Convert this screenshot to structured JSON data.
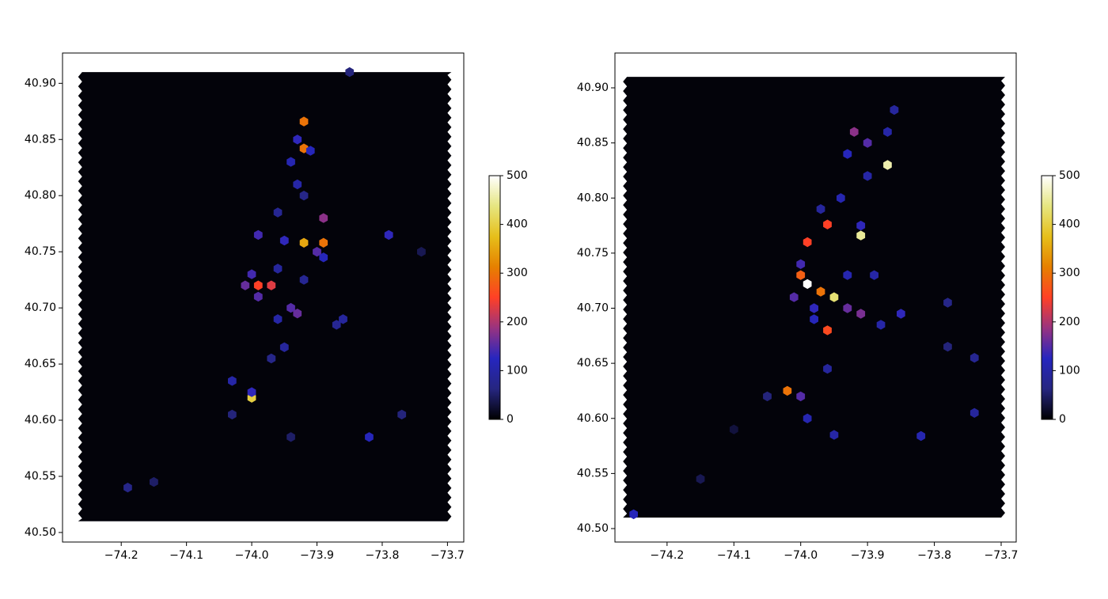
{
  "chart_data": [
    {
      "type": "hexbin",
      "x": [
        -73.92,
        -73.92,
        -73.92,
        -73.89,
        -73.99,
        -74.0,
        -73.97,
        -73.89,
        -73.93,
        -73.91,
        -73.94,
        -73.93,
        -73.95,
        -73.99,
        -74.0,
        -74.01,
        -73.99,
        -73.94,
        -73.93,
        -73.9,
        -73.79,
        -73.82,
        -74.03,
        -74.0,
        -73.95,
        -73.85,
        -74.19,
        -74.15,
        -73.77,
        -73.74,
        -73.87,
        -73.86,
        -73.96,
        -73.92,
        -73.96,
        -74.03,
        -73.94,
        -73.97,
        -73.96,
        -73.92,
        -73.89
      ],
      "y": [
        40.866,
        40.842,
        40.758,
        40.758,
        40.72,
        40.62,
        40.72,
        40.78,
        40.85,
        40.84,
        40.83,
        40.81,
        40.76,
        40.765,
        40.73,
        40.72,
        40.71,
        40.7,
        40.695,
        40.75,
        40.765,
        40.585,
        40.635,
        40.625,
        40.665,
        40.91,
        40.54,
        40.545,
        40.605,
        40.75,
        40.685,
        40.69,
        40.735,
        40.8,
        40.785,
        40.605,
        40.585,
        40.655,
        40.69,
        40.725,
        40.745
      ],
      "values": [
        300,
        300,
        350,
        300,
        250,
        400,
        230,
        180,
        130,
        120,
        110,
        100,
        130,
        140,
        140,
        160,
        150,
        150,
        160,
        150,
        130,
        120,
        100,
        130,
        90,
        60,
        70,
        50,
        60,
        40,
        80,
        90,
        90,
        70,
        80,
        60,
        50,
        70,
        100,
        80,
        120
      ],
      "xlim": [
        -74.29,
        -73.675
      ],
      "ylim": [
        40.4915,
        40.927
      ],
      "xticks": [
        {
          "value": -74.2,
          "label": "−74.2"
        },
        {
          "value": -74.1,
          "label": "−74.1"
        },
        {
          "value": -74.0,
          "label": "−74.0"
        },
        {
          "value": -73.9,
          "label": "−73.9"
        },
        {
          "value": -73.8,
          "label": "−73.8"
        },
        {
          "value": -73.7,
          "label": "−73.7"
        }
      ],
      "yticks": [
        {
          "value": 40.5,
          "label": "40.50"
        },
        40.55,
        {
          "value": 40.6,
          "label": "40.60"
        },
        40.65,
        {
          "value": 40.7,
          "label": "40.70"
        },
        40.75,
        {
          "value": 40.8,
          "label": "40.80"
        },
        40.85,
        {
          "value": 40.9,
          "label": "40.90"
        }
      ],
      "colorbar_lim": [
        0,
        500
      ],
      "colorbar_ticks": [
        0,
        100,
        200,
        300,
        400,
        500
      ],
      "colormap": [
        "#000000",
        "#262680",
        "#2626bf",
        "#993380",
        "#ff4026",
        "#e68000",
        "#e6bf1a",
        "#e6e680",
        "#ffffff"
      ]
    },
    {
      "type": "hexbin",
      "x": [
        -73.99,
        -73.87,
        -73.91,
        -73.95,
        -73.97,
        -74.0,
        -73.99,
        -73.96,
        -73.96,
        -74.02,
        -74.25,
        -73.82,
        -73.95,
        -73.74,
        -73.74,
        -73.92,
        -73.9,
        -73.87,
        -73.86,
        -73.93,
        -73.9,
        -73.94,
        -73.97,
        -73.91,
        -73.93,
        -73.89,
        -74.0,
        -74.01,
        -73.98,
        -73.93,
        -73.91,
        -73.85,
        -73.88,
        -73.98,
        -74.0,
        -73.99,
        -73.96,
        -74.05,
        -73.78,
        -74.1,
        -74.15,
        -73.78
      ],
      "y": [
        40.722,
        40.83,
        40.766,
        40.71,
        40.715,
        40.73,
        40.76,
        40.776,
        40.68,
        40.625,
        40.513,
        40.584,
        40.585,
        40.605,
        40.655,
        40.86,
        40.85,
        40.86,
        40.88,
        40.84,
        40.82,
        40.8,
        40.79,
        40.775,
        40.73,
        40.73,
        40.74,
        40.71,
        40.7,
        40.7,
        40.695,
        40.695,
        40.685,
        40.69,
        40.62,
        40.6,
        40.645,
        40.62,
        40.665,
        40.59,
        40.545,
        40.705
      ],
      "values": [
        500,
        460,
        450,
        430,
        300,
        280,
        250,
        250,
        260,
        300,
        120,
        110,
        100,
        90,
        80,
        180,
        150,
        100,
        90,
        120,
        100,
        110,
        90,
        130,
        110,
        100,
        140,
        150,
        130,
        160,
        170,
        130,
        100,
        120,
        150,
        110,
        90,
        60,
        60,
        30,
        40,
        70
      ],
      "xlim": [
        -74.278,
        -73.6775
      ],
      "ylim": [
        40.4878,
        40.9316
      ],
      "xticks": [
        {
          "value": -74.2,
          "label": "−74.2"
        },
        {
          "value": -74.1,
          "label": "−74.1"
        },
        {
          "value": -74.0,
          "label": "−74.0"
        },
        {
          "value": -73.9,
          "label": "−73.9"
        },
        {
          "value": -73.8,
          "label": "−73.8"
        },
        {
          "value": -73.7,
          "label": "−73.7"
        }
      ],
      "yticks": [
        {
          "value": 40.5,
          "label": "40.50"
        },
        40.55,
        {
          "value": 40.6,
          "label": "40.60"
        },
        40.65,
        {
          "value": 40.7,
          "label": "40.70"
        },
        40.75,
        {
          "value": 40.8,
          "label": "40.80"
        },
        40.85,
        {
          "value": 40.9,
          "label": "40.90"
        }
      ],
      "colorbar_lim": [
        0,
        500
      ],
      "colorbar_ticks": [
        0,
        100,
        200,
        300,
        400,
        500
      ],
      "colormap": [
        "#000000",
        "#262680",
        "#2626bf",
        "#993380",
        "#ff4026",
        "#e68000",
        "#e6bf1a",
        "#e6e680",
        "#ffffff"
      ]
    }
  ]
}
